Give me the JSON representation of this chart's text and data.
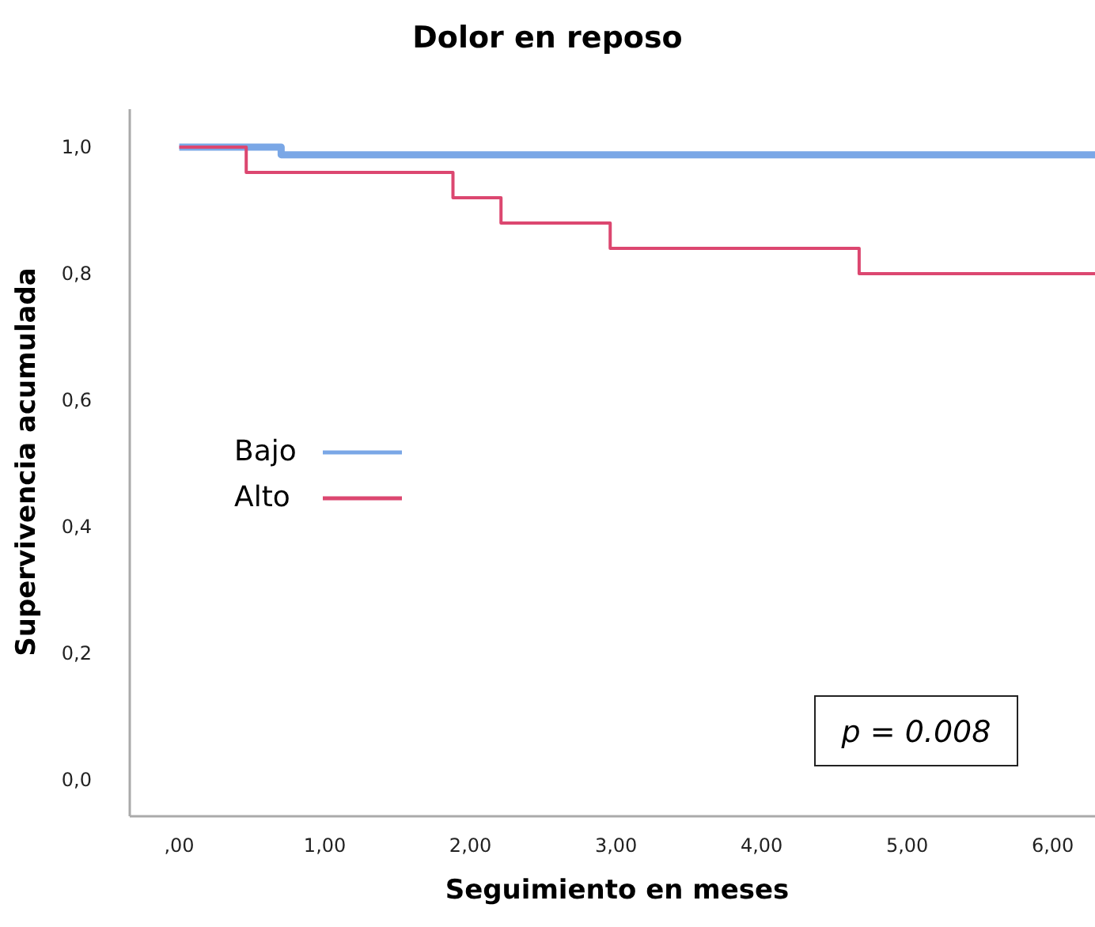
{
  "chart_data": {
    "type": "step",
    "title": "Dolor en reposo",
    "xlabel": "Seguimiento en meses",
    "ylabel": "Supervivencia acumulada",
    "xlim": [
      -0.34,
      6.29
    ],
    "ylim": [
      -0.057,
      1.06
    ],
    "xticks": [
      {
        "value": 0,
        "label": ",00"
      },
      {
        "value": 1,
        "label": "1,00"
      },
      {
        "value": 2,
        "label": "2,00"
      },
      {
        "value": 3,
        "label": "3,00"
      },
      {
        "value": 4,
        "label": "4,00"
      },
      {
        "value": 5,
        "label": "5,00"
      },
      {
        "value": 6,
        "label": "6,00"
      }
    ],
    "yticks": [
      {
        "value": 0,
        "label": "0,0"
      },
      {
        "value": 0.2,
        "label": "0,2"
      },
      {
        "value": 0.4,
        "label": "0,4"
      },
      {
        "value": 0.6,
        "label": "0,6"
      },
      {
        "value": 0.8,
        "label": "0,8"
      },
      {
        "value": 1,
        "label": "1,0"
      }
    ],
    "series": [
      {
        "name": "Bajo",
        "color": "#7aa7e6",
        "x": [
          0,
          0.7,
          6.29
        ],
        "values": [
          1,
          0.988,
          0.988
        ]
      },
      {
        "name": "Alto",
        "color": "#dc4770",
        "x": [
          0,
          0.46,
          1.88,
          2.21,
          2.96,
          4.67,
          6.29
        ],
        "values": [
          1,
          0.96,
          0.92,
          0.88,
          0.84,
          0.8,
          0.8
        ]
      }
    ],
    "legend": "left",
    "grid": false,
    "annotations": [
      "p = 0.008"
    ]
  }
}
